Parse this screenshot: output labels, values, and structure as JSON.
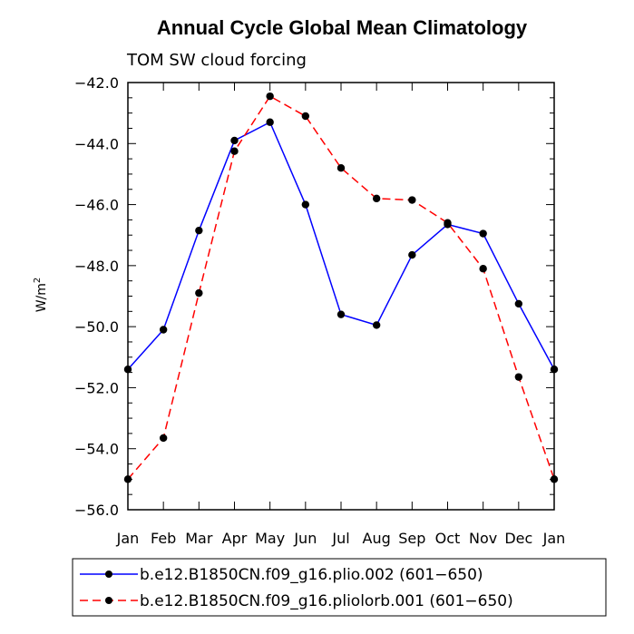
{
  "chart_data": {
    "type": "line",
    "title": "Annual Cycle Global Mean Climatology",
    "subtitle": "TOM SW cloud forcing",
    "ylabel_base": "W/m",
    "ylabel_sup": "2",
    "categories": [
      "Jan",
      "Feb",
      "Mar",
      "Apr",
      "May",
      "Jun",
      "Jul",
      "Aug",
      "Sep",
      "Oct",
      "Nov",
      "Dec",
      "Jan"
    ],
    "ylim": [
      -56.0,
      -42.0
    ],
    "yticks": [
      -42.0,
      -44.0,
      -46.0,
      -48.0,
      -50.0,
      -52.0,
      -54.0,
      -56.0
    ],
    "ytick_labels": [
      "−42.0",
      "−44.0",
      "−46.0",
      "−48.0",
      "−50.0",
      "−52.0",
      "−54.0",
      "−56.0"
    ],
    "series": [
      {
        "name": "b.e12.B1850CN.f09_g16.plio.002 (601−650)",
        "color": "#0000ff",
        "dash": "solid",
        "values": [
          -51.4,
          -50.1,
          -46.85,
          -43.9,
          -43.3,
          -46.0,
          -49.6,
          -49.95,
          -47.65,
          -46.65,
          -46.95,
          -49.25,
          -51.4
        ]
      },
      {
        "name": "b.e12.B1850CN.f09_g16.pliolorb.001 (601−650)",
        "color": "#ff0000",
        "dash": "dashed",
        "values": [
          -55.0,
          -53.65,
          -48.9,
          -44.25,
          -42.45,
          -43.1,
          -44.8,
          -45.8,
          -45.85,
          -46.6,
          -48.1,
          -51.65,
          -55.0
        ]
      }
    ]
  }
}
